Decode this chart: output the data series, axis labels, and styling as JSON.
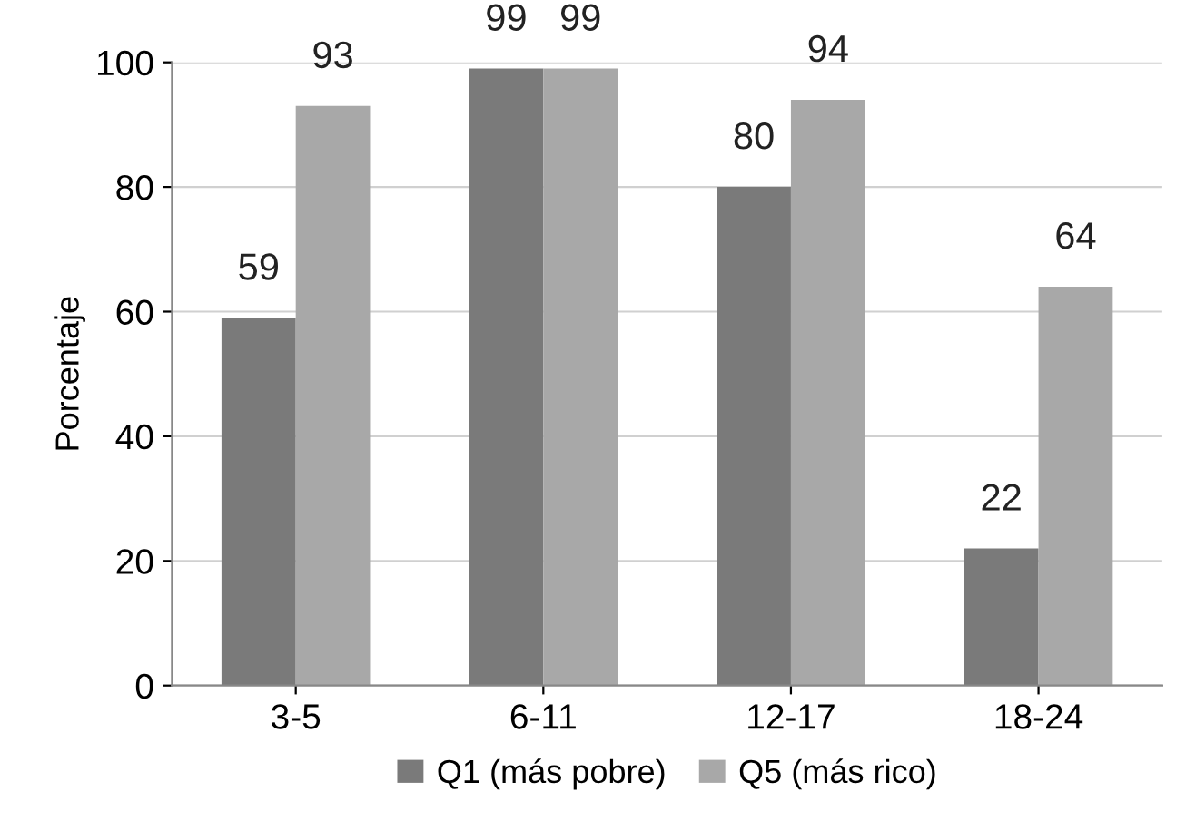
{
  "chart_data": {
    "type": "bar",
    "ylabel": "Porcentaje",
    "categories": [
      "3-5",
      "6-11",
      "12-17",
      "18-24"
    ],
    "series": [
      {
        "name": "Q1 (más pobre)",
        "color": "#7a7a7a",
        "values": [
          59,
          99,
          80,
          22
        ]
      },
      {
        "name": "Q5 (más rico)",
        "color": "#a8a8a8",
        "values": [
          93,
          99,
          94,
          64
        ]
      }
    ],
    "ylim": [
      0,
      100
    ],
    "yticks": [
      0,
      20,
      40,
      60,
      80,
      100
    ],
    "grid": "y",
    "legend": "bottom",
    "data_labels": true
  }
}
